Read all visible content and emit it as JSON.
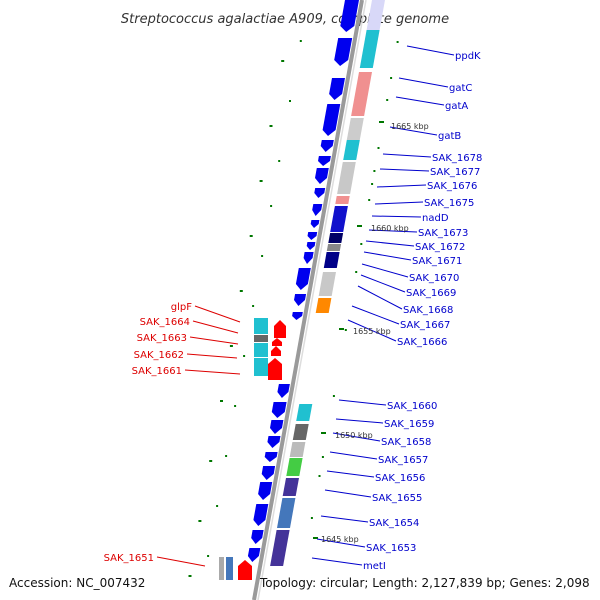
{
  "title": "Streptococcus agalactiae A909, complete genome",
  "footer": {
    "accession": "Accession: NC_007432",
    "topology": "Topology: circular; Length: 2,127,839 bp; Genes: 2,098"
  },
  "colors": {
    "backbone": "#9a9a9a",
    "forward_label": "#0000cc",
    "reverse_label": "#dd0000",
    "forward_gene": "#0000ee",
    "reverse_gene": "#ff0000",
    "tick": "#007700"
  },
  "scale_labels": [
    "1665 kbp",
    "1660 kbp",
    "1655 kbp",
    "1650 kbp",
    "1645 kbp"
  ],
  "forward_genes": [
    "ppdK",
    "gatC",
    "gatA",
    "gatB",
    "SAK_1678",
    "SAK_1677",
    "SAK_1676",
    "SAK_1675",
    "nadD",
    "SAK_1673",
    "SAK_1672",
    "SAK_1671",
    "SAK_1670",
    "SAK_1669",
    "SAK_1668",
    "SAK_1667",
    "SAK_1666",
    "SAK_1660",
    "SAK_1659",
    "SAK_1658",
    "SAK_1657",
    "SAK_1656",
    "SAK_1655",
    "SAK_1654",
    "SAK_1653",
    "metI"
  ],
  "reverse_genes": [
    "glpF",
    "SAK_1664",
    "SAK_1663",
    "SAK_1662",
    "SAK_1661",
    "SAK_1651"
  ]
}
